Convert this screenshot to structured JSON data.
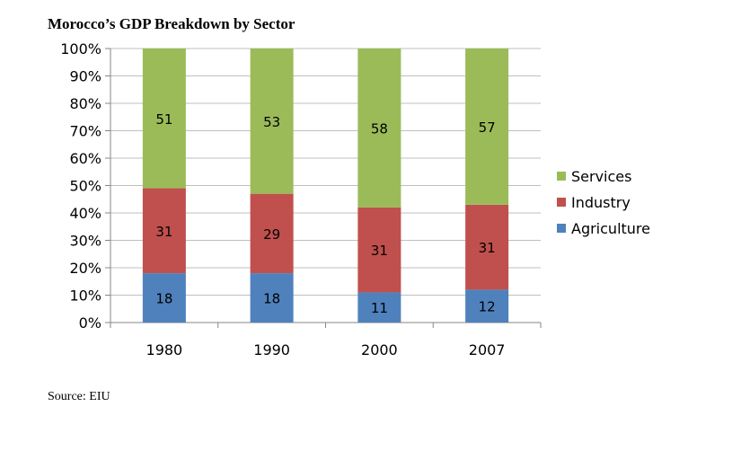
{
  "chart_data": {
    "type": "bar",
    "stacked": true,
    "title": "Morocco’s GDP Breakdown by Sector",
    "categories": [
      "1980",
      "1990",
      "2000",
      "2007"
    ],
    "series": [
      {
        "name": "Agriculture",
        "values": [
          18,
          18,
          11,
          12
        ],
        "color": "#4f81bd"
      },
      {
        "name": "Industry",
        "values": [
          31,
          29,
          31,
          31
        ],
        "color": "#c0504d"
      },
      {
        "name": "Services",
        "values": [
          51,
          53,
          58,
          57
        ],
        "color": "#9bbb59"
      }
    ],
    "ylim": [
      0,
      100
    ],
    "yticks": [
      "0%",
      "10%",
      "20%",
      "30%",
      "40%",
      "50%",
      "60%",
      "70%",
      "80%",
      "90%",
      "100%"
    ],
    "grid": true,
    "legend_position": "right"
  },
  "source": "Source:  EIU"
}
